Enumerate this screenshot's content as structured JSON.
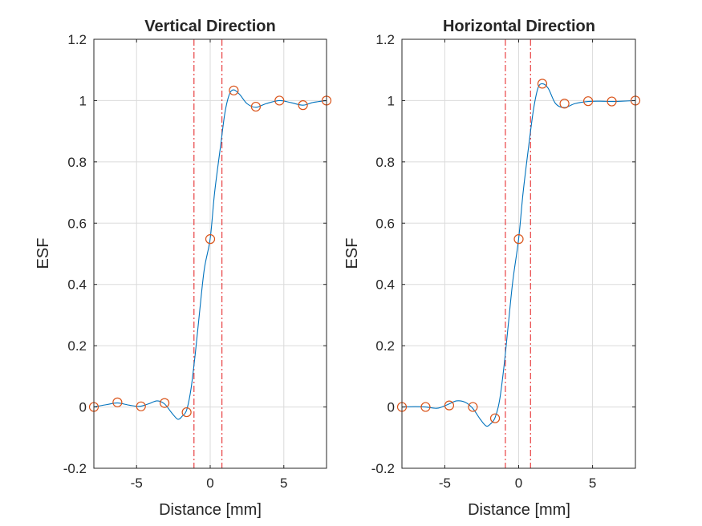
{
  "figure": {
    "background": "#ffffff"
  },
  "colors": {
    "curve": "#0072BD",
    "markers": "#D95319",
    "edge_lines": "#E41A1C",
    "grid": "#DBDBDB",
    "axes": "#262626"
  },
  "chart_data": [
    {
      "type": "line",
      "title": "Vertical Direction",
      "xlabel": "Distance [mm]",
      "ylabel": "ESF",
      "xlim": [
        -7.9,
        7.9
      ],
      "ylim": [
        -0.2,
        1.2
      ],
      "xticks": [
        -5,
        0,
        5
      ],
      "xtick_labels": [
        "-5",
        "0",
        "5"
      ],
      "yticks": [
        -0.2,
        0,
        0.2,
        0.4,
        0.6,
        0.8,
        1,
        1.2
      ],
      "ytick_labels": [
        "-0.2",
        "0",
        "0.2",
        "0.4",
        "0.6",
        "0.8",
        "1",
        "1.2"
      ],
      "grid": true,
      "series": [
        {
          "style": "line",
          "x": [
            -7.9,
            -7.0,
            -6.3,
            -5.5,
            -4.8,
            -4.2,
            -3.6,
            -3.1,
            -2.6,
            -2.2,
            -1.9,
            -1.6,
            -1.3,
            -1.0,
            -0.7,
            -0.4,
            0.0,
            0.3,
            0.7,
            1.0,
            1.3,
            1.6,
            2.0,
            2.5,
            3.1,
            3.8,
            4.7,
            5.5,
            6.3,
            7.0,
            7.9
          ],
          "y": [
            0.0,
            0.008,
            0.013,
            0.006,
            0.002,
            0.01,
            0.02,
            0.01,
            -0.02,
            -0.04,
            -0.03,
            -0.01,
            0.06,
            0.18,
            0.32,
            0.45,
            0.55,
            0.7,
            0.85,
            0.96,
            1.02,
            1.035,
            1.02,
            0.99,
            0.978,
            0.99,
            1.0,
            0.993,
            0.985,
            0.994,
            1.0
          ]
        },
        {
          "style": "markers",
          "x": [
            -7.9,
            -6.3,
            -4.7,
            -3.1,
            -1.6,
            0.0,
            1.6,
            3.1,
            4.7,
            6.3,
            7.9
          ],
          "y": [
            0.0,
            0.015,
            0.002,
            0.013,
            -0.017,
            0.548,
            1.033,
            0.98,
            1.0,
            0.985,
            1.0
          ]
        }
      ],
      "vlines": [
        -1.1,
        0.8
      ]
    },
    {
      "type": "line",
      "title": "Horizontal Direction",
      "xlabel": "Distance [mm]",
      "ylabel": "ESF",
      "xlim": [
        -7.9,
        7.9
      ],
      "ylim": [
        -0.2,
        1.2
      ],
      "xticks": [
        -5,
        0,
        5
      ],
      "xtick_labels": [
        "-5",
        "0",
        "5"
      ],
      "yticks": [
        -0.2,
        0,
        0.2,
        0.4,
        0.6,
        0.8,
        1,
        1.2
      ],
      "ytick_labels": [
        "-0.2",
        "0",
        "0.2",
        "0.4",
        "0.6",
        "0.8",
        "1",
        "1.2"
      ],
      "grid": true,
      "series": [
        {
          "style": "line",
          "x": [
            -7.9,
            -7.0,
            -6.3,
            -5.5,
            -4.8,
            -4.2,
            -3.6,
            -3.1,
            -2.6,
            -2.2,
            -1.9,
            -1.6,
            -1.3,
            -1.0,
            -0.7,
            -0.4,
            0.0,
            0.3,
            0.7,
            1.0,
            1.3,
            1.6,
            2.0,
            2.5,
            3.1,
            3.8,
            4.7,
            5.5,
            6.3,
            7.0,
            7.9
          ],
          "y": [
            0.0,
            0.001,
            0.0,
            -0.004,
            0.008,
            0.02,
            0.015,
            -0.005,
            -0.04,
            -0.062,
            -0.055,
            -0.035,
            0.02,
            0.13,
            0.27,
            0.41,
            0.55,
            0.7,
            0.86,
            0.97,
            1.04,
            1.055,
            1.04,
            0.99,
            0.977,
            0.99,
            0.997,
            0.998,
            0.997,
            0.998,
            1.0
          ]
        },
        {
          "style": "markers",
          "x": [
            -7.9,
            -6.3,
            -4.7,
            -3.1,
            -1.6,
            0.0,
            1.6,
            3.1,
            4.7,
            6.3,
            7.9
          ],
          "y": [
            0.0,
            0.0,
            0.005,
            0.0,
            -0.037,
            0.548,
            1.055,
            0.99,
            0.998,
            0.997,
            1.0
          ]
        }
      ],
      "vlines": [
        -0.9,
        0.8
      ]
    }
  ]
}
